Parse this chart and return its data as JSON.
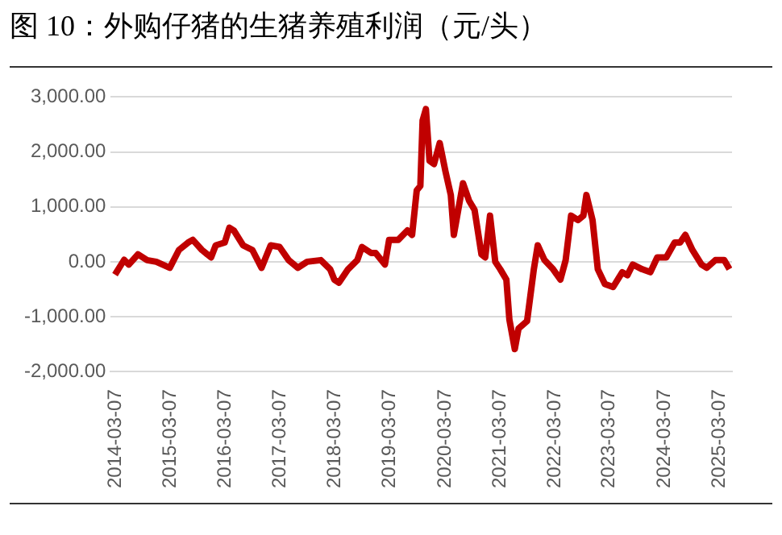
{
  "chart_data": {
    "type": "line",
    "title": "图 10：外购仔猪的生猪养殖利润（元/头）",
    "x": [
      "2014-03",
      "2014-05",
      "2014-06",
      "2014-08",
      "2014-10",
      "2014-12",
      "2015-03",
      "2015-05",
      "2015-07",
      "2015-08",
      "2015-10",
      "2015-12",
      "2016-01",
      "2016-03",
      "2016-04",
      "2016-05",
      "2016-07",
      "2016-09",
      "2016-11",
      "2017-01",
      "2017-03",
      "2017-05",
      "2017-07",
      "2017-09",
      "2017-12",
      "2018-02",
      "2018-03",
      "2018-04",
      "2018-06",
      "2018-08",
      "2018-09",
      "2018-11",
      "2018-12",
      "2019-02",
      "2019-03",
      "2019-05",
      "2019-07",
      "2019-08",
      "2019-09-01",
      "2019-09-25",
      "2019-10-10",
      "2019-11-01",
      "2019-11-25",
      "2019-12-25",
      "2020-02-01",
      "2020-03-10",
      "2020-04-15",
      "2020-05-05",
      "2020-07-05",
      "2020-08-15",
      "2020-09-20",
      "2020-11-05",
      "2020-11-30",
      "2021-01-01",
      "2021-02-05",
      "2021-03-10",
      "2021-04-20",
      "2021-05-10",
      "2021-06-15",
      "2021-07-10",
      "2021-09-05",
      "2021-10-20",
      "2021-11-15",
      "2021-12-30",
      "2022-02-25",
      "2022-04-15",
      "2022-05-20",
      "2022-06-25",
      "2022-08-10",
      "2022-09-15",
      "2022-10-05",
      "2022-11-15",
      "2022-12-20",
      "2023-02-05",
      "2023-04-01",
      "2023-06-01",
      "2023-07-05",
      "2023-08-10",
      "2023-10-10",
      "2023-12-05",
      "2024-01-20",
      "2024-03-20",
      "2024-05-15",
      "2024-06-20",
      "2024-07-25",
      "2024-09-10",
      "2024-11-10",
      "2024-12-15",
      "2025-02-10",
      "2025-04-10",
      "2025-05-15"
    ],
    "series": [
      {
        "color": "#c00000",
        "values": [
          -235,
          35,
          -50,
          135,
          30,
          0,
          -110,
          215,
          350,
          400,
          215,
          80,
          300,
          350,
          620,
          570,
          300,
          215,
          -110,
          300,
          270,
          30,
          -110,
          0,
          30,
          -135,
          -325,
          -380,
          -135,
          30,
          270,
          160,
          160,
          -50,
          400,
          400,
          570,
          490,
          1300,
          1380,
          2570,
          2780,
          1840,
          1780,
          2160,
          1650,
          1215,
          490,
          1430,
          1110,
          945,
          135,
          80,
          840,
          0,
          -135,
          -325,
          -1050,
          -1590,
          -1215,
          -1080,
          -135,
          300,
          30,
          -135,
          -325,
          30,
          840,
          760,
          840,
          1215,
          760,
          -135,
          -405,
          -460,
          -190,
          -245,
          -50,
          -135,
          -190,
          80,
          80,
          350,
          350,
          490,
          215,
          -50,
          -110,
          30,
          30,
          -135
        ]
      }
    ],
    "xlim": [
      "2014-02",
      "2025-06"
    ],
    "xticks": [
      "2014-03-07",
      "2015-03-07",
      "2016-03-07",
      "2017-03-07",
      "2018-03-07",
      "2019-03-07",
      "2020-03-07",
      "2021-03-07",
      "2022-03-07",
      "2023-03-07",
      "2024-03-07",
      "2025-03-07"
    ],
    "ylim": [
      -2000,
      3000
    ],
    "yticks": [
      {
        "value": -2000,
        "label": "-2,000.00"
      },
      {
        "value": -1000,
        "label": "-1,000.00"
      },
      {
        "value": 0,
        "label": "0.00"
      },
      {
        "value": 1000,
        "label": "1,000.00"
      },
      {
        "value": 2000,
        "label": "2,000.00"
      },
      {
        "value": 3000,
        "label": "3,000.00"
      }
    ],
    "grid": "y",
    "legend": false,
    "marker": "none",
    "line_style": "solid"
  }
}
